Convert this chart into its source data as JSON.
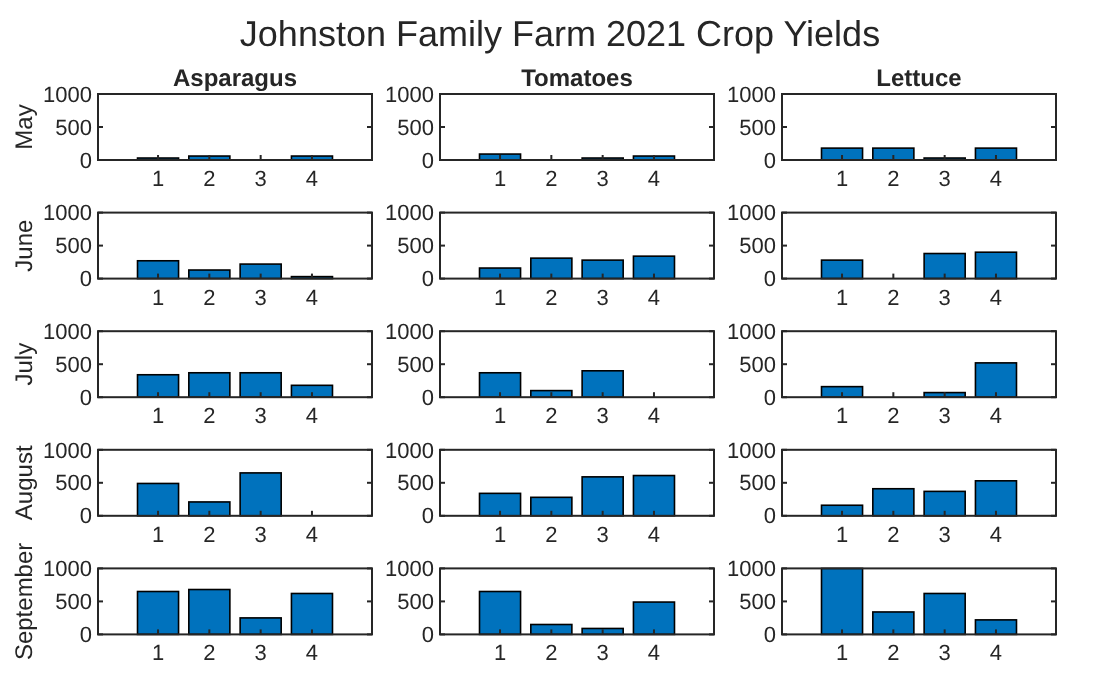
{
  "chart_data": [
    {
      "type": "other",
      "title": "Johnston Family Farm 2021 Crop Yields"
    },
    {
      "type": "bar",
      "title": "Asparagus",
      "ylabel": "May",
      "categories": [
        "1",
        "2",
        "3",
        "4"
      ],
      "values": [
        30,
        60,
        0,
        60
      ],
      "color": "#0072bd",
      "ylim": [
        0,
        1000
      ],
      "yticks": [
        0,
        500,
        1000
      ]
    },
    {
      "type": "bar",
      "title": "Tomatoes",
      "categories": [
        "1",
        "2",
        "3",
        "4"
      ],
      "values": [
        90,
        0,
        30,
        60
      ],
      "color": "#0072bd",
      "ylim": [
        0,
        1000
      ],
      "yticks": [
        0,
        500,
        1000
      ]
    },
    {
      "type": "bar",
      "title": "Lettuce",
      "categories": [
        "1",
        "2",
        "3",
        "4"
      ],
      "values": [
        180,
        180,
        30,
        180
      ],
      "color": "#0072bd",
      "ylim": [
        0,
        1000
      ],
      "yticks": [
        0,
        500,
        1000
      ]
    },
    {
      "type": "bar",
      "ylabel": "June",
      "categories": [
        "1",
        "2",
        "3",
        "4"
      ],
      "values": [
        270,
        130,
        220,
        30
      ],
      "color": "#0072bd",
      "ylim": [
        0,
        1000
      ],
      "yticks": [
        0,
        500,
        1000
      ]
    },
    {
      "type": "bar",
      "categories": [
        "1",
        "2",
        "3",
        "4"
      ],
      "values": [
        160,
        310,
        280,
        340
      ],
      "color": "#0072bd",
      "ylim": [
        0,
        1000
      ],
      "yticks": [
        0,
        500,
        1000
      ]
    },
    {
      "type": "bar",
      "categories": [
        "1",
        "2",
        "3",
        "4"
      ],
      "values": [
        280,
        0,
        380,
        400
      ],
      "color": "#0072bd",
      "ylim": [
        0,
        1000
      ],
      "yticks": [
        0,
        500,
        1000
      ]
    },
    {
      "type": "bar",
      "ylabel": "July",
      "categories": [
        "1",
        "2",
        "3",
        "4"
      ],
      "values": [
        340,
        370,
        370,
        180
      ],
      "color": "#0072bd",
      "ylim": [
        0,
        1000
      ],
      "yticks": [
        0,
        500,
        1000
      ]
    },
    {
      "type": "bar",
      "categories": [
        "1",
        "2",
        "3",
        "4"
      ],
      "values": [
        370,
        100,
        400,
        0
      ],
      "color": "#0072bd",
      "ylim": [
        0,
        1000
      ],
      "yticks": [
        0,
        500,
        1000
      ]
    },
    {
      "type": "bar",
      "categories": [
        "1",
        "2",
        "3",
        "4"
      ],
      "values": [
        160,
        0,
        70,
        520
      ],
      "color": "#0072bd",
      "ylim": [
        0,
        1000
      ],
      "yticks": [
        0,
        500,
        1000
      ]
    },
    {
      "type": "bar",
      "ylabel": "August",
      "categories": [
        "1",
        "2",
        "3",
        "4"
      ],
      "values": [
        490,
        210,
        650,
        0
      ],
      "color": "#0072bd",
      "ylim": [
        0,
        1000
      ],
      "yticks": [
        0,
        500,
        1000
      ]
    },
    {
      "type": "bar",
      "categories": [
        "1",
        "2",
        "3",
        "4"
      ],
      "values": [
        340,
        280,
        590,
        610
      ],
      "color": "#0072bd",
      "ylim": [
        0,
        1000
      ],
      "yticks": [
        0,
        500,
        1000
      ]
    },
    {
      "type": "bar",
      "categories": [
        "1",
        "2",
        "3",
        "4"
      ],
      "values": [
        160,
        410,
        370,
        530
      ],
      "color": "#0072bd",
      "ylim": [
        0,
        1000
      ],
      "yticks": [
        0,
        500,
        1000
      ]
    },
    {
      "type": "bar",
      "ylabel": "September",
      "categories": [
        "1",
        "2",
        "3",
        "4"
      ],
      "values": [
        650,
        680,
        250,
        620
      ],
      "color": "#0072bd",
      "ylim": [
        0,
        1000
      ],
      "yticks": [
        0,
        500,
        1000
      ]
    },
    {
      "type": "bar",
      "categories": [
        "1",
        "2",
        "3",
        "4"
      ],
      "values": [
        650,
        150,
        90,
        490
      ],
      "color": "#0072bd",
      "ylim": [
        0,
        1000
      ],
      "yticks": [
        0,
        500,
        1000
      ]
    },
    {
      "type": "bar",
      "categories": [
        "1",
        "2",
        "3",
        "4"
      ],
      "values": [
        1000,
        340,
        620,
        220
      ],
      "color": "#0072bd",
      "ylim": [
        0,
        1000
      ],
      "yticks": [
        0,
        500,
        1000
      ]
    }
  ]
}
